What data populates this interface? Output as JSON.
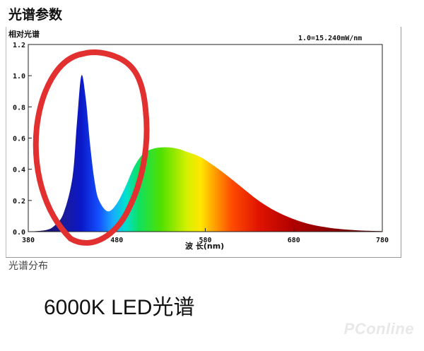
{
  "page": {
    "heading": "光谱参数",
    "distribution_label": "光谱分布",
    "caption": "6000K LED光谱",
    "watermark": "PConline"
  },
  "chart_data": {
    "type": "area",
    "title": "",
    "ylabel": "相对光谱",
    "xlabel": "波 长(nm)",
    "annotation": "1.0=15.240mW/nm",
    "xlim": [
      380,
      780
    ],
    "ylim": [
      0,
      1.2
    ],
    "x_ticks": [
      380,
      480,
      580,
      680,
      780
    ],
    "y_ticks": [
      0.0,
      0.2,
      0.4,
      0.6,
      0.8,
      1.0,
      1.2
    ],
    "x": [
      380,
      400,
      410,
      420,
      430,
      435,
      440,
      445,
      450,
      455,
      460,
      470,
      480,
      490,
      500,
      510,
      520,
      530,
      540,
      550,
      560,
      570,
      580,
      600,
      620,
      640,
      660,
      680,
      700,
      720,
      740,
      760,
      780
    ],
    "y": [
      0.0,
      0.01,
      0.04,
      0.12,
      0.35,
      0.7,
      1.0,
      0.85,
      0.55,
      0.32,
      0.2,
      0.13,
      0.18,
      0.29,
      0.42,
      0.5,
      0.53,
      0.54,
      0.54,
      0.53,
      0.51,
      0.49,
      0.46,
      0.38,
      0.29,
      0.2,
      0.13,
      0.08,
      0.045,
      0.025,
      0.013,
      0.006,
      0.003
    ],
    "grid": false,
    "fill": "visible spectrum colors by wavelength",
    "highlight": {
      "shape": "hand-drawn ellipse",
      "color": "#e23030",
      "around_x": [
        380,
        470
      ]
    }
  }
}
